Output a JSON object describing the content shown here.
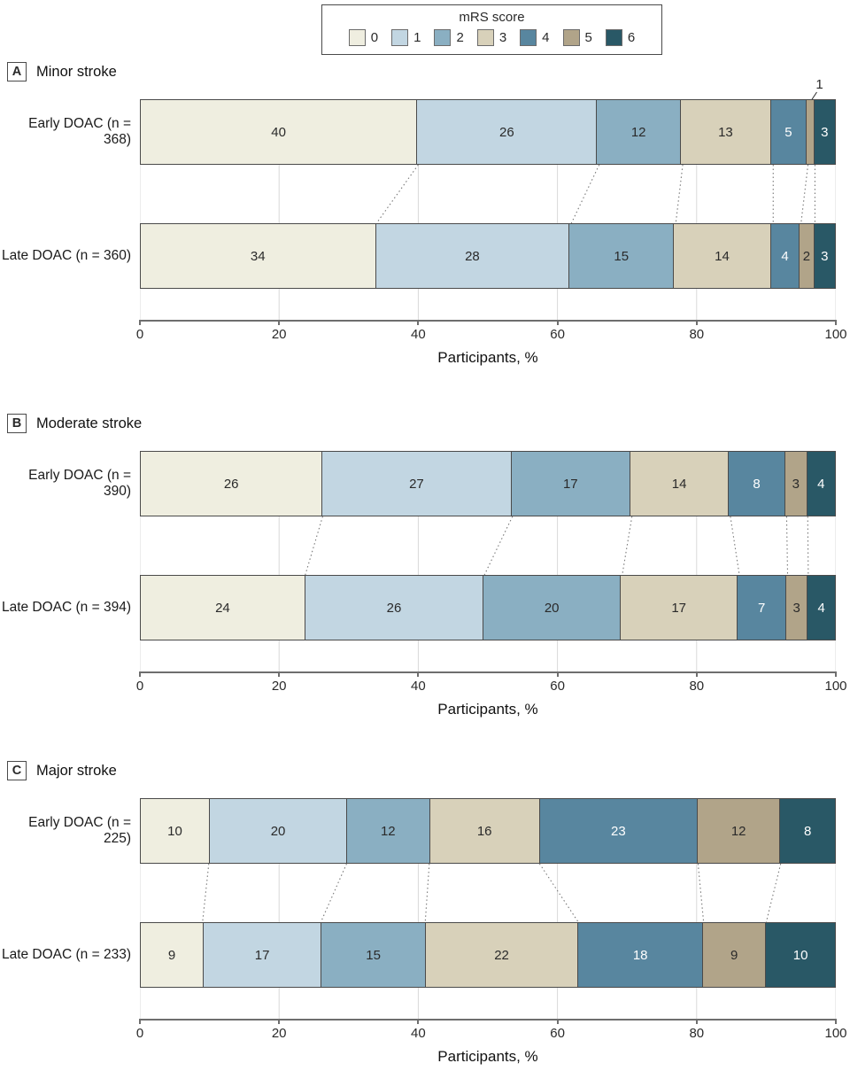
{
  "chart_data": {
    "type": "bar",
    "stacked": true,
    "orientation": "horizontal",
    "unit": "percent",
    "legend": {
      "title": "mRS score",
      "position": "top",
      "entries": [
        "0",
        "1",
        "2",
        "3",
        "4",
        "5",
        "6"
      ]
    },
    "colors": [
      "#EFEEE0",
      "#C2D6E2",
      "#8AAFC2",
      "#D8D1BA",
      "#58869F",
      "#B1A489",
      "#295866"
    ],
    "white_text_segments": [
      4,
      6
    ],
    "xlabel": "Participants, %",
    "xlim": [
      0,
      100
    ],
    "xticks": [
      0,
      20,
      40,
      60,
      80,
      100
    ],
    "grid": "between-bars",
    "panels": [
      {
        "key": "A",
        "title": "Minor stroke",
        "xlabel": "Participants, %",
        "rows": [
          {
            "label": "Early DOAC (n = 368)",
            "values": [
              40,
              26,
              12,
              13,
              5,
              1,
              3
            ],
            "hidden_labels": [
              5
            ]
          },
          {
            "label": "Late DOAC (n = 360)",
            "values": [
              34,
              28,
              15,
              14,
              4,
              2,
              3
            ],
            "hidden_labels": []
          }
        ],
        "annotations": [
          {
            "text": "1",
            "row": 0,
            "segment": 5
          }
        ]
      },
      {
        "key": "B",
        "title": "Moderate stroke",
        "xlabel": "Participants, %",
        "rows": [
          {
            "label": "Early DOAC (n = 390)",
            "values": [
              26,
              27,
              17,
              14,
              8,
              3,
              4
            ],
            "hidden_labels": []
          },
          {
            "label": "Late DOAC (n = 394)",
            "values": [
              24,
              26,
              20,
              17,
              7,
              3,
              4
            ],
            "hidden_labels": []
          }
        ],
        "annotations": []
      },
      {
        "key": "C",
        "title": "Major stroke",
        "xlabel": "Participants, %",
        "rows": [
          {
            "label": "Early DOAC (n = 225)",
            "values": [
              10,
              20,
              12,
              16,
              23,
              12,
              8
            ],
            "hidden_labels": []
          },
          {
            "label": "Late DOAC (n = 233)",
            "values": [
              9,
              17,
              15,
              22,
              18,
              9,
              10
            ],
            "hidden_labels": []
          }
        ],
        "annotations": []
      }
    ]
  }
}
